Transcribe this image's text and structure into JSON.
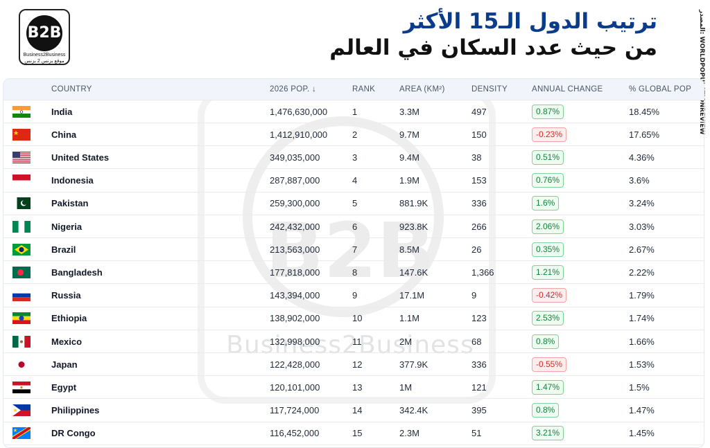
{
  "logo": {
    "mark": "B2B",
    "line1": "Business2Business",
    "line2": "موقع بزنس 2 بزنس"
  },
  "title": {
    "line1": "ترتيب الدول الـ15 الأكثر",
    "line2": "من حيث عدد السكان في العالم"
  },
  "source": "المصدر: WORLDPOPULATIONREVIEW",
  "watermark": {
    "mark": "B2B",
    "brand": "Business2Business"
  },
  "table": {
    "headers": {
      "country": "COUNTRY",
      "pop": "2026 POP. ↓",
      "rank": "RANK",
      "area": "AREA (KM²)",
      "density": "DENSITY",
      "change": "ANNUAL CHANGE",
      "global": "% GLOBAL POP"
    },
    "rows": [
      {
        "flag": "india-flag",
        "country": "India",
        "pop": "1,476,630,000",
        "rank": "1",
        "area": "3.3M",
        "density": "497",
        "change": "0.87%",
        "trend": "positive",
        "global": "18.45%"
      },
      {
        "flag": "china-flag",
        "country": "China",
        "pop": "1,412,910,000",
        "rank": "2",
        "area": "9.7M",
        "density": "150",
        "change": "-0.23%",
        "trend": "negative",
        "global": "17.65%"
      },
      {
        "flag": "usa-flag",
        "country": "United States",
        "pop": "349,035,000",
        "rank": "3",
        "area": "9.4M",
        "density": "38",
        "change": "0.51%",
        "trend": "positive",
        "global": "4.36%"
      },
      {
        "flag": "indonesia-flag",
        "country": "Indonesia",
        "pop": "287,887,000",
        "rank": "4",
        "area": "1.9M",
        "density": "153",
        "change": "0.76%",
        "trend": "positive",
        "global": "3.6%"
      },
      {
        "flag": "pakistan-flag",
        "country": "Pakistan",
        "pop": "259,300,000",
        "rank": "5",
        "area": "881.9K",
        "density": "336",
        "change": "1.6%",
        "trend": "positive",
        "global": "3.24%"
      },
      {
        "flag": "nigeria-flag",
        "country": "Nigeria",
        "pop": "242,432,000",
        "rank": "6",
        "area": "923.8K",
        "density": "266",
        "change": "2.06%",
        "trend": "positive",
        "global": "3.03%"
      },
      {
        "flag": "brazil-flag",
        "country": "Brazil",
        "pop": "213,563,000",
        "rank": "7",
        "area": "8.5M",
        "density": "26",
        "change": "0.35%",
        "trend": "positive",
        "global": "2.67%"
      },
      {
        "flag": "bangladesh-flag",
        "country": "Bangladesh",
        "pop": "177,818,000",
        "rank": "8",
        "area": "147.6K",
        "density": "1,366",
        "change": "1.21%",
        "trend": "positive",
        "global": "2.22%"
      },
      {
        "flag": "russia-flag",
        "country": "Russia",
        "pop": "143,394,000",
        "rank": "9",
        "area": "17.1M",
        "density": "9",
        "change": "-0.42%",
        "trend": "negative",
        "global": "1.79%"
      },
      {
        "flag": "ethiopia-flag",
        "country": "Ethiopia",
        "pop": "138,902,000",
        "rank": "10",
        "area": "1.1M",
        "density": "123",
        "change": "2.53%",
        "trend": "positive",
        "global": "1.74%"
      },
      {
        "flag": "mexico-flag",
        "country": "Mexico",
        "pop": "132,998,000",
        "rank": "11",
        "area": "2M",
        "density": "68",
        "change": "0.8%",
        "trend": "positive",
        "global": "1.66%"
      },
      {
        "flag": "japan-flag",
        "country": "Japan",
        "pop": "122,428,000",
        "rank": "12",
        "area": "377.9K",
        "density": "336",
        "change": "-0.55%",
        "trend": "negative",
        "global": "1.53%"
      },
      {
        "flag": "egypt-flag",
        "country": "Egypt",
        "pop": "120,101,000",
        "rank": "13",
        "area": "1M",
        "density": "121",
        "change": "1.47%",
        "trend": "positive",
        "global": "1.5%"
      },
      {
        "flag": "philippines-flag",
        "country": "Philippines",
        "pop": "117,724,000",
        "rank": "14",
        "area": "342.4K",
        "density": "395",
        "change": "0.8%",
        "trend": "positive",
        "global": "1.47%"
      },
      {
        "flag": "drcongo-flag",
        "country": "DR Congo",
        "pop": "116,452,000",
        "rank": "15",
        "area": "2.3M",
        "density": "51",
        "change": "3.21%",
        "trend": "positive",
        "global": "1.45%"
      }
    ]
  }
}
